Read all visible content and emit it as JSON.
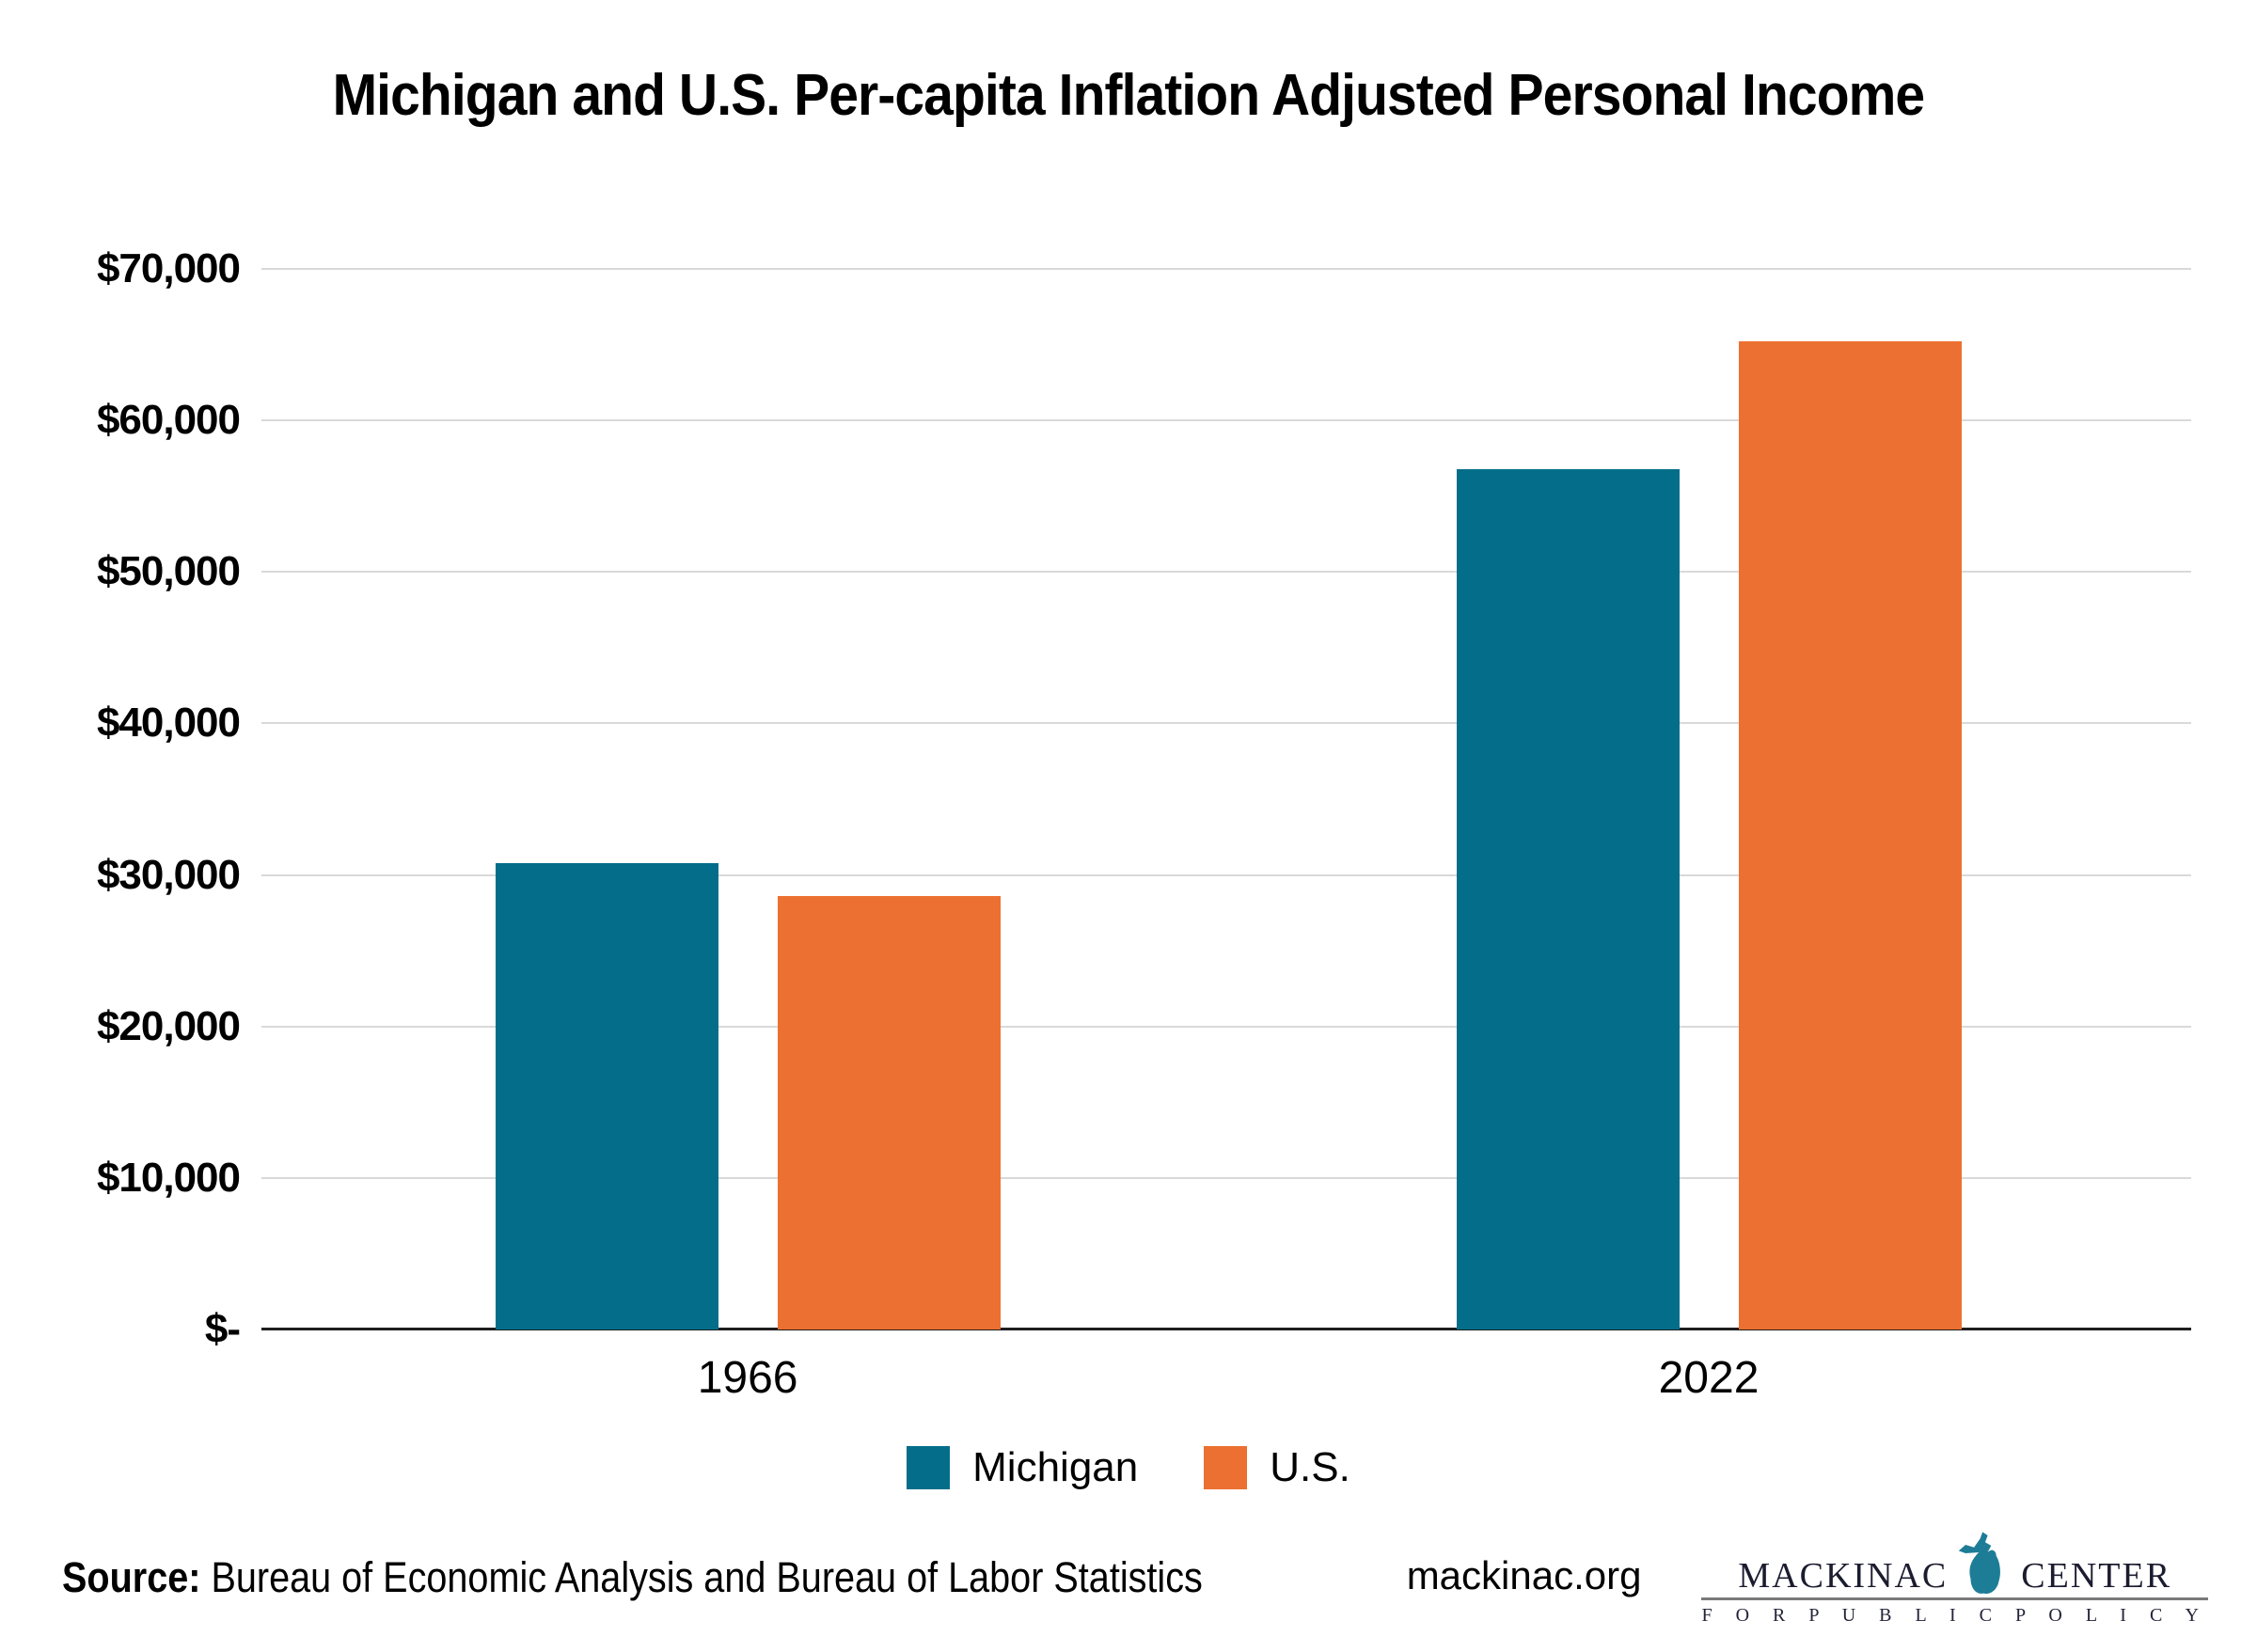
{
  "title": "Michigan and U.S. Per-capita Inflation Adjusted Personal Income",
  "chart_data": {
    "type": "bar",
    "categories": [
      "1966",
      "2022"
    ],
    "series": [
      {
        "name": "Michigan",
        "color": "#046e8a",
        "values": [
          30800,
          56800
        ]
      },
      {
        "name": "U.S.",
        "color": "#ec7031",
        "values": [
          28600,
          65200
        ]
      }
    ],
    "title": "Michigan and U.S. Per-capita Inflation Adjusted Personal Income",
    "xlabel": "",
    "ylabel": "",
    "ylim": [
      0,
      70000
    ],
    "ytick_step": 10000,
    "ytick_labels": [
      "$-",
      "$10,000",
      "$20,000",
      "$30,000",
      "$40,000",
      "$50,000",
      "$60,000",
      "$70,000"
    ],
    "grid": true,
    "legend_position": "bottom",
    "legend_labels": [
      "Michigan",
      "U.S."
    ]
  },
  "footer": {
    "source_label": "Source:",
    "source_text": " Bureau of Economic Analysis and Bureau of Labor Statistics",
    "website": "mackinac.org",
    "logo": {
      "line1_left": "MACKINAC",
      "line1_right": "CENTER",
      "line2": "F O R   P U B L I C   P O L I C Y",
      "michigan_icon_color": "#1d7d97"
    }
  }
}
